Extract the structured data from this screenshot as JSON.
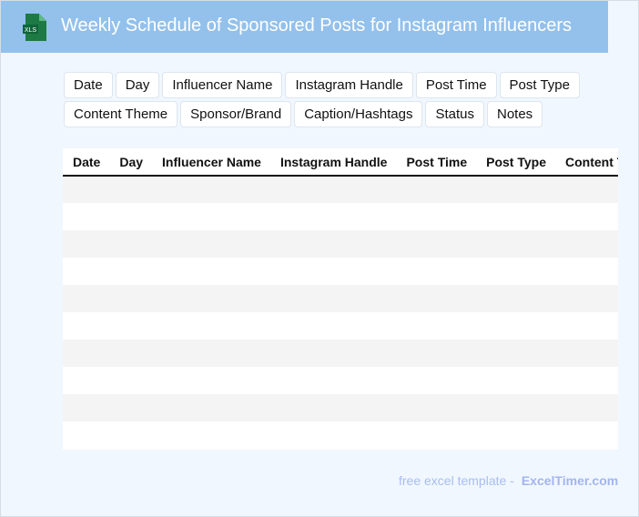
{
  "header": {
    "title": "Weekly Schedule of Sponsored Posts for Instagram Influencers",
    "logo_text": "XLS",
    "color": "#93c1ec"
  },
  "chips": [
    "Date",
    "Day",
    "Influencer Name",
    "Instagram Handle",
    "Post Time",
    "Post Type",
    "Content Theme",
    "Sponsor/Brand",
    "Caption/Hashtags",
    "Status",
    "Notes"
  ],
  "table": {
    "columns": [
      "Date",
      "Day",
      "Influencer Name",
      "Instagram Handle",
      "Post Time",
      "Post Type",
      "Content Theme"
    ],
    "row_count": 10
  },
  "footer": {
    "text": "free excel template -",
    "brand": "ExcelTimer.com"
  }
}
